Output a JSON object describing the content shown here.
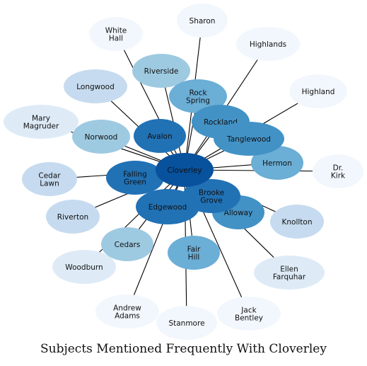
{
  "title": "Subjects Mentioned Frequently With Cloverley",
  "center": "Cloverley",
  "colors": {
    "center": "#08519c",
    "dark": "#2171b5",
    "mid": "#4292c6",
    "midlight": "#6baed6",
    "light": "#9ecae1",
    "lighter": "#c6dbef",
    "pale": "#deebf7",
    "palest": "#f2f7fd"
  },
  "nodes": [
    {
      "id": "cloverley",
      "label": [
        "Cloverley"
      ],
      "shade": "center"
    },
    {
      "id": "avalon",
      "label": [
        "Avalon"
      ],
      "shade": "dark"
    },
    {
      "id": "falling-green",
      "label": [
        "Falling",
        "Green"
      ],
      "shade": "dark"
    },
    {
      "id": "edgewood",
      "label": [
        "Edgewood"
      ],
      "shade": "dark"
    },
    {
      "id": "brooke-grove",
      "label": [
        "Brooke",
        "Grove"
      ],
      "shade": "dark"
    },
    {
      "id": "rockland",
      "label": [
        "Rockland"
      ],
      "shade": "mid"
    },
    {
      "id": "tanglewood",
      "label": [
        "Tanglewood"
      ],
      "shade": "mid"
    },
    {
      "id": "alloway",
      "label": [
        "Alloway"
      ],
      "shade": "mid"
    },
    {
      "id": "rock-spring",
      "label": [
        "Rock",
        "Spring"
      ],
      "shade": "midlight"
    },
    {
      "id": "hermon",
      "label": [
        "Hermon"
      ],
      "shade": "midlight"
    },
    {
      "id": "fair-hill",
      "label": [
        "Fair",
        "Hill"
      ],
      "shade": "midlight"
    },
    {
      "id": "riverside",
      "label": [
        "Riverside"
      ],
      "shade": "light"
    },
    {
      "id": "norwood",
      "label": [
        "Norwood"
      ],
      "shade": "light"
    },
    {
      "id": "cedars",
      "label": [
        "Cedars"
      ],
      "shade": "light"
    },
    {
      "id": "longwood",
      "label": [
        "Longwood"
      ],
      "shade": "lighter"
    },
    {
      "id": "cedar-lawn",
      "label": [
        "Cedar",
        "Lawn"
      ],
      "shade": "lighter"
    },
    {
      "id": "riverton",
      "label": [
        "Riverton"
      ],
      "shade": "lighter"
    },
    {
      "id": "knollton",
      "label": [
        "Knollton"
      ],
      "shade": "lighter"
    },
    {
      "id": "mary-magruder",
      "label": [
        "Mary",
        "Magruder"
      ],
      "shade": "pale"
    },
    {
      "id": "woodburn",
      "label": [
        "Woodburn"
      ],
      "shade": "pale"
    },
    {
      "id": "ellen-farquhar",
      "label": [
        "Ellen",
        "Farquhar"
      ],
      "shade": "pale"
    },
    {
      "id": "white-hall",
      "label": [
        "White",
        "Hall"
      ],
      "shade": "palest"
    },
    {
      "id": "sharon",
      "label": [
        "Sharon"
      ],
      "shade": "palest"
    },
    {
      "id": "highlands",
      "label": [
        "Highlands"
      ],
      "shade": "palest"
    },
    {
      "id": "highland",
      "label": [
        "Highland"
      ],
      "shade": "palest"
    },
    {
      "id": "dr-kirk",
      "label": [
        "Dr.",
        "Kirk"
      ],
      "shade": "palest"
    },
    {
      "id": "andrew-adams",
      "label": [
        "Andrew",
        "Adams"
      ],
      "shade": "palest"
    },
    {
      "id": "stanmore",
      "label": [
        "Stanmore"
      ],
      "shade": "palest"
    },
    {
      "id": "jack-bentley",
      "label": [
        "Jack",
        "Bentley"
      ],
      "shade": "palest"
    }
  ],
  "edges": [
    [
      "cloverley",
      "white-hall"
    ],
    [
      "cloverley",
      "sharon"
    ],
    [
      "cloverley",
      "highlands"
    ],
    [
      "cloverley",
      "highland"
    ],
    [
      "cloverley",
      "riverside"
    ],
    [
      "cloverley",
      "longwood"
    ],
    [
      "cloverley",
      "rock-spring"
    ],
    [
      "cloverley",
      "mary-magruder"
    ],
    [
      "cloverley",
      "norwood"
    ],
    [
      "cloverley",
      "avalon"
    ],
    [
      "cloverley",
      "rockland"
    ],
    [
      "cloverley",
      "tanglewood"
    ],
    [
      "cloverley",
      "hermon"
    ],
    [
      "cloverley",
      "dr-kirk"
    ],
    [
      "cloverley",
      "cedar-lawn"
    ],
    [
      "cloverley",
      "falling-green"
    ],
    [
      "cloverley",
      "brooke-grove"
    ],
    [
      "cloverley",
      "riverton"
    ],
    [
      "cloverley",
      "edgewood"
    ],
    [
      "cloverley",
      "alloway"
    ],
    [
      "cloverley",
      "knollton"
    ],
    [
      "cloverley",
      "cedars"
    ],
    [
      "cloverley",
      "fair-hill"
    ],
    [
      "cloverley",
      "woodburn"
    ],
    [
      "cloverley",
      "ellen-farquhar"
    ],
    [
      "cloverley",
      "andrew-adams"
    ],
    [
      "cloverley",
      "stanmore"
    ],
    [
      "cloverley",
      "jack-bentley"
    ]
  ]
}
